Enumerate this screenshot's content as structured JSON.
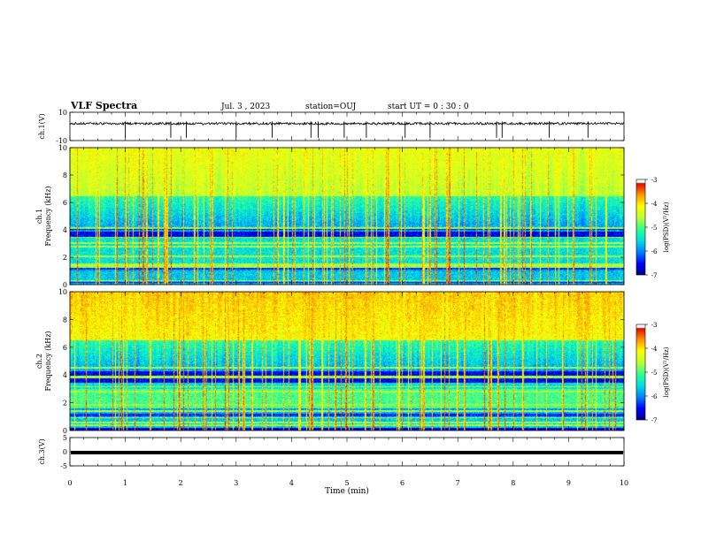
{
  "header": {
    "title": "VLF Spectra",
    "date": "Jul. 3 , 2023",
    "station": "station=OUJ",
    "start": "start UT = 0 : 30 : 0"
  },
  "chart_data": [
    {
      "type": "line",
      "panel": "ch1-waveform",
      "ylabel": "ch.1(V)",
      "ylim": [
        -10,
        10
      ],
      "yticks": [
        "10",
        "-10"
      ],
      "xlim": [
        0,
        10
      ],
      "series": [
        {
          "values_summary": {
            "baseline": 2.0,
            "noise_amplitude": 0.8,
            "spike_times_min": [
              1.0,
              1.82,
              2.1,
              3.0,
              3.65,
              4.35,
              4.48,
              4.95,
              5.35,
              6.05,
              6.5,
              7.7,
              7.8,
              8.65,
              9.35
            ]
          }
        }
      ]
    },
    {
      "type": "heatmap",
      "panel": "ch1-spectrogram",
      "ylabel_line1": "ch.1",
      "ylabel_line2": "Frequency (kHz)",
      "ylim": [
        0,
        10
      ],
      "yticks": [
        "0",
        "2",
        "4",
        "6",
        "8",
        "10"
      ],
      "xlim": [
        0,
        10
      ],
      "colorbar": {
        "label": "log(PSD)(V²/Hz)",
        "ticks": [
          "-3",
          "-4",
          "-5",
          "-6",
          "-7"
        ],
        "range": [
          -7,
          -3
        ]
      }
    },
    {
      "type": "heatmap",
      "panel": "ch2-spectrogram",
      "ylabel_line1": "ch.2",
      "ylabel_line2": "Frequency (kHz)",
      "ylim": [
        0,
        10
      ],
      "yticks": [
        "0",
        "2",
        "4",
        "6",
        "8",
        "10"
      ],
      "xlim": [
        0,
        10
      ],
      "colorbar": {
        "label": "log(PSD)(V²/Hz)",
        "ticks": [
          "-3",
          "-4",
          "-5",
          "-6",
          "-7"
        ],
        "range": [
          -7,
          -3
        ]
      }
    },
    {
      "type": "line",
      "panel": "ch3-waveform",
      "ylabel": "ch.3(V)",
      "ylim": [
        -5,
        5
      ],
      "yticks": [
        "5",
        "0",
        "-5"
      ],
      "xlim": [
        0,
        10
      ],
      "series": [
        {
          "values_summary": {
            "baseline": 0.0
          }
        }
      ]
    }
  ],
  "xaxis": {
    "label": "Time (min)",
    "ticks": [
      "0",
      "1",
      "2",
      "3",
      "4",
      "5",
      "6",
      "7",
      "8",
      "9",
      "10"
    ]
  },
  "colors": {
    "palette": [
      "#00007a",
      "#0000ff",
      "#0080ff",
      "#00e0e0",
      "#30ff90",
      "#c0ff30",
      "#ffff00",
      "#ff9000",
      "#e00000",
      "#ffffff"
    ]
  }
}
